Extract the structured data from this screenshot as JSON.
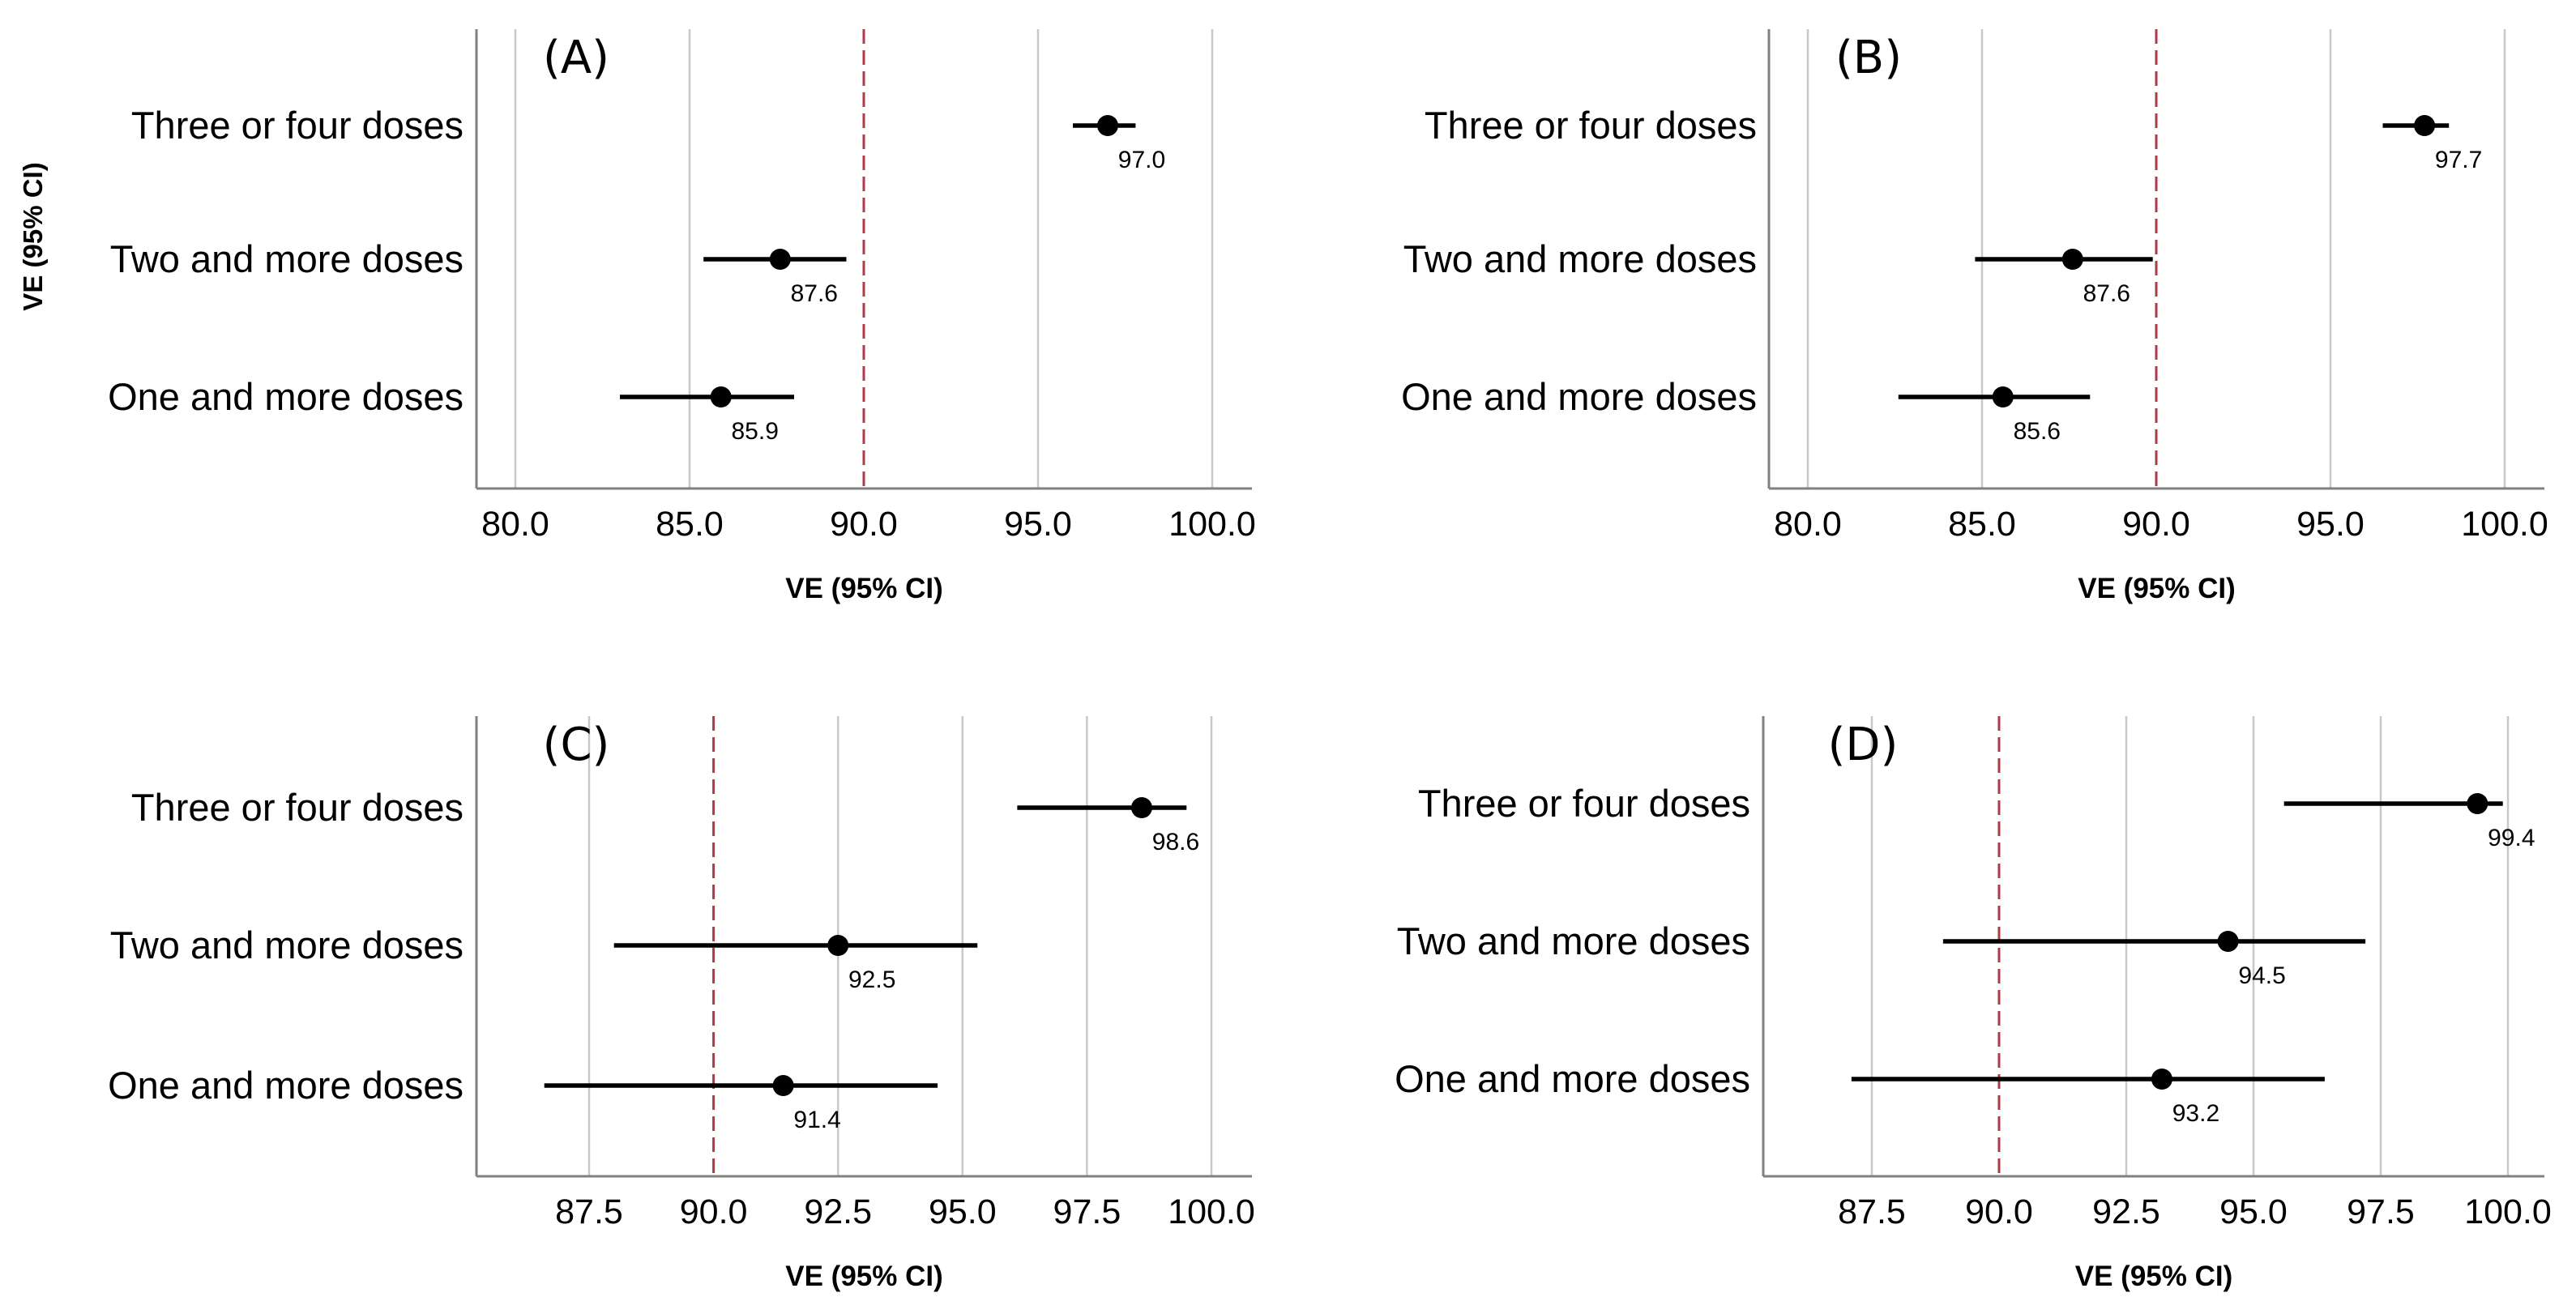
{
  "figure": {
    "y_axis_label": "VE (95% CI)"
  },
  "chart_data": [
    {
      "type": "forest",
      "panel_label": "(A)",
      "xlabel": "VE (95% CI)",
      "xlim": [
        79.5,
        100.5
      ],
      "xticks": [
        "80.0",
        "85.0",
        "90.0",
        "95.0",
        "100.0"
      ],
      "xtick_values": [
        80,
        85,
        90,
        95,
        100
      ],
      "reference_line": 90,
      "rows": [
        {
          "label": "Three or four doses",
          "value": 97.0,
          "ci_low": 96.0,
          "ci_high": 97.8,
          "value_label": "97.0"
        },
        {
          "label": "Two and more doses",
          "value": 87.6,
          "ci_low": 85.4,
          "ci_high": 89.5,
          "value_label": "87.6"
        },
        {
          "label": "One and more doses",
          "value": 85.9,
          "ci_low": 83.0,
          "ci_high": 88.0,
          "value_label": "85.9"
        }
      ]
    },
    {
      "type": "forest",
      "panel_label": "(B)",
      "xlabel": "VE (95% CI)",
      "xlim": [
        79.5,
        100.5
      ],
      "xticks": [
        "80.0",
        "85.0",
        "90.0",
        "95.0",
        "100.0"
      ],
      "xtick_values": [
        80,
        85,
        90,
        95,
        100
      ],
      "reference_line": 90,
      "rows": [
        {
          "label": "Three or four doses",
          "value": 97.7,
          "ci_low": 96.5,
          "ci_high": 98.4,
          "value_label": "97.7"
        },
        {
          "label": "Two and more doses",
          "value": 87.6,
          "ci_low": 84.8,
          "ci_high": 89.9,
          "value_label": "87.6"
        },
        {
          "label": "One and more doses",
          "value": 85.6,
          "ci_low": 82.6,
          "ci_high": 88.1,
          "value_label": "85.6"
        }
      ]
    },
    {
      "type": "forest",
      "panel_label": "(C)",
      "xlabel": "VE (95% CI)",
      "xlim": [
        85.3,
        100.5
      ],
      "xticks": [
        "87.5",
        "90.0",
        "92.5",
        "95.0",
        "97.5",
        "100.0"
      ],
      "xtick_values": [
        87.5,
        90,
        92.5,
        95,
        97.5,
        100
      ],
      "reference_line": 90,
      "rows": [
        {
          "label": "Three or four doses",
          "value": 98.6,
          "ci_low": 96.1,
          "ci_high": 99.5,
          "value_label": "98.6"
        },
        {
          "label": "Two and more doses",
          "value": 92.5,
          "ci_low": 88.0,
          "ci_high": 95.3,
          "value_label": "92.5"
        },
        {
          "label": "One and more doses",
          "value": 91.4,
          "ci_low": 86.6,
          "ci_high": 94.5,
          "value_label": "91.4"
        }
      ]
    },
    {
      "type": "forest",
      "panel_label": "(D)",
      "xlabel": "VE (95% CI)",
      "xlim": [
        85.3,
        100.5
      ],
      "xticks": [
        "87.5",
        "90.0",
        "92.5",
        "95.0",
        "97.5",
        "100.0"
      ],
      "xtick_values": [
        87.5,
        90,
        92.5,
        95,
        97.5,
        100
      ],
      "reference_line": 90,
      "rows": [
        {
          "label": "Three or four doses",
          "value": 99.4,
          "ci_low": 95.6,
          "ci_high": 99.9,
          "value_label": "99.4"
        },
        {
          "label": "Two and more doses",
          "value": 94.5,
          "ci_low": 88.9,
          "ci_high": 97.2,
          "value_label": "94.5"
        },
        {
          "label": "One and more doses",
          "value": 93.2,
          "ci_low": 87.1,
          "ci_high": 96.4,
          "value_label": "93.2"
        }
      ]
    }
  ],
  "colors": {
    "axis": "#808080",
    "grid": "#c8c8c8",
    "reference": "#b03a48",
    "marker": "#000000"
  }
}
